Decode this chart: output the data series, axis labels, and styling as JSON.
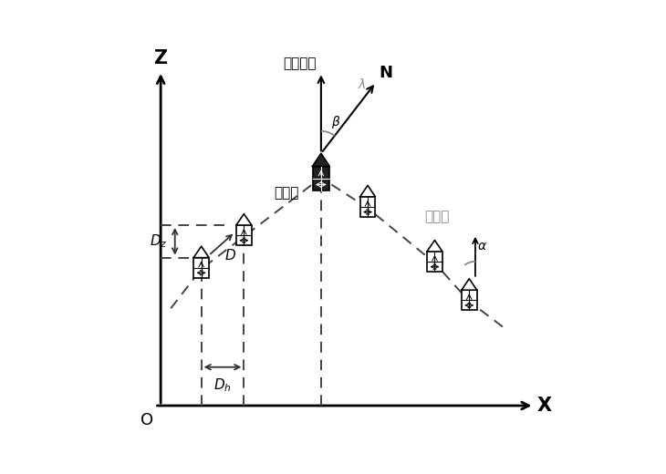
{
  "bg_color": "#ffffff",
  "axis_color": "#000000",
  "ship_outline_color": "#000000",
  "ship_fill_color": "#ffffff",
  "center_ship_fill": "#222222",
  "dashed_color": "#444444",
  "arrow_dark": "#333333",
  "arrow_gray": "#888888",
  "label_color": "#000000",
  "gray_label_color": "#888888",
  "z_label": "Z",
  "x_label": "X",
  "o_label": "O",
  "n_label": "N",
  "lambda_label": "λ",
  "beta_label": "β",
  "alpha_label": "α",
  "formation_heading": "队列航向",
  "formation_line": "队列线",
  "base_ship": "基准舰",
  "xlim": [
    0,
    10
  ],
  "ylim": [
    0,
    9
  ],
  "figsize": [
    7.3,
    5.2
  ],
  "dpi": 100
}
